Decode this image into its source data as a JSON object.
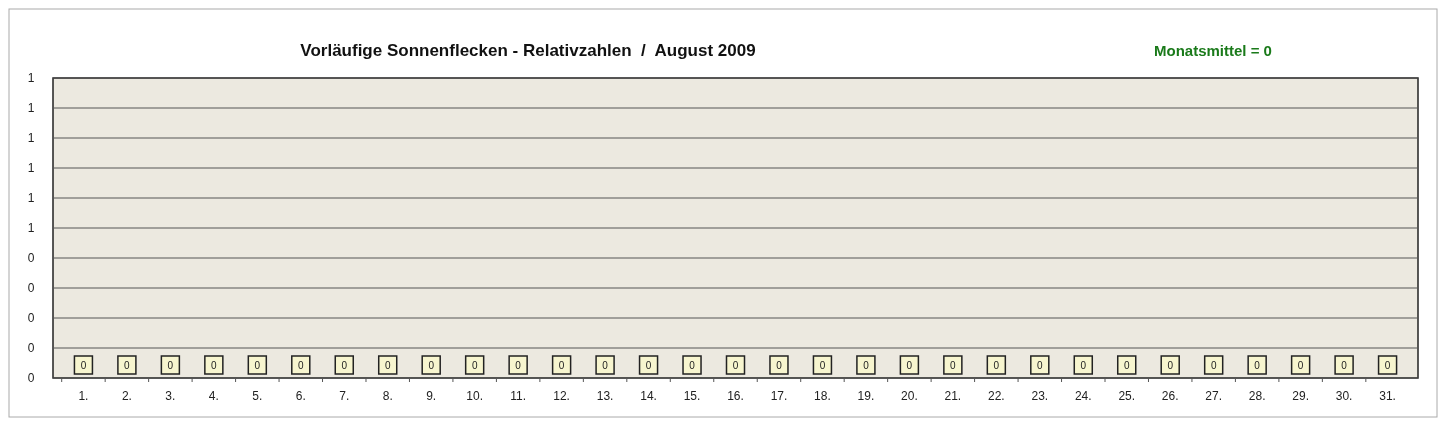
{
  "chart_data": {
    "type": "bar",
    "title": "Vorläufige Sonnenflecken - Relativzahlen  /  August 2009",
    "annotations": [
      "Monatsmittel = 0"
    ],
    "categories": [
      "1.",
      "2.",
      "3.",
      "4.",
      "5.",
      "6.",
      "7.",
      "8.",
      "9.",
      "10.",
      "11.",
      "12.",
      "13.",
      "14.",
      "15.",
      "16.",
      "17.",
      "18.",
      "19.",
      "20.",
      "21.",
      "22.",
      "23.",
      "24.",
      "25.",
      "26.",
      "27.",
      "28.",
      "29.",
      "30.",
      "31."
    ],
    "values": [
      0,
      0,
      0,
      0,
      0,
      0,
      0,
      0,
      0,
      0,
      0,
      0,
      0,
      0,
      0,
      0,
      0,
      0,
      0,
      0,
      0,
      0,
      0,
      0,
      0,
      0,
      0,
      0,
      0,
      0,
      0
    ],
    "color": "#f7f5cf",
    "ylim": [
      0,
      1
    ],
    "yticks": [
      0,
      {
        "value": 0.1,
        "label": "0"
      },
      {
        "value": 0.2,
        "label": "0"
      },
      {
        "value": 0.3,
        "label": "0"
      },
      {
        "value": 0.4,
        "label": "0"
      },
      {
        "value": 0.5,
        "label": "1"
      },
      {
        "value": 0.6,
        "label": "1"
      },
      {
        "value": 0.7,
        "label": "1"
      },
      {
        "value": 0.8,
        "label": "1"
      },
      {
        "value": 0.9,
        "label": "1"
      },
      1
    ],
    "grid": "y",
    "data_labels": true
  }
}
